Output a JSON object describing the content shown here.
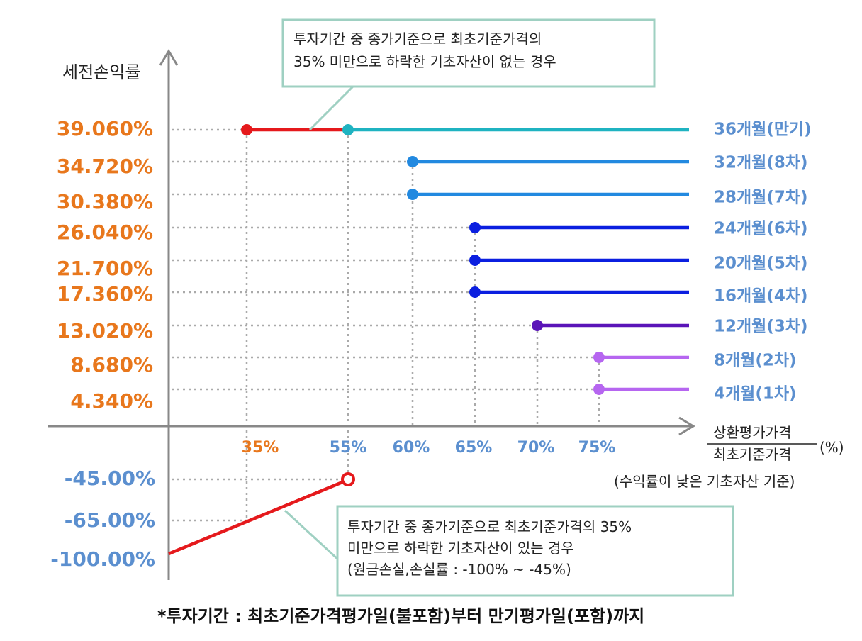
{
  "chart_data": {
    "type": "line",
    "ylabel": "세전손익률",
    "xlabel_numerator": "상환평가가격",
    "xlabel_denominator": "최초기준가격",
    "xlabel_unit": "(%)",
    "xlabel_note": "(수익률이 낮은 기초자산 기준)",
    "x_ticks": [
      {
        "label": "35%",
        "color": "#e8771c"
      },
      {
        "label": "55%",
        "color": "#5b8fcf"
      },
      {
        "label": "60%",
        "color": "#5b8fcf"
      },
      {
        "label": "65%",
        "color": "#5b8fcf"
      },
      {
        "label": "70%",
        "color": "#5b8fcf"
      },
      {
        "label": "75%",
        "color": "#5b8fcf"
      }
    ],
    "y_ticks_positive": [
      "39.060%",
      "34.720%",
      "30.380%",
      "26.040%",
      "21.700%",
      "17.360%",
      "13.020%",
      "8.680%",
      "4.340%"
    ],
    "y_ticks_negative": [
      "-45.00%",
      "-65.00%",
      "-100.00%"
    ],
    "positive_label_color": "#e8771c",
    "negative_label_color": "#5b8fcf",
    "series": [
      {
        "name": "36개월(만기)",
        "return": 39.06,
        "barrier": 55,
        "color": "#1fb3c1",
        "label_color": "#5b8fcf"
      },
      {
        "name": "32개월(8차)",
        "return": 34.72,
        "barrier": 60,
        "color": "#2289e0",
        "label_color": "#5b8fcf"
      },
      {
        "name": "28개월(7차)",
        "return": 30.38,
        "barrier": 60,
        "color": "#2289e0",
        "label_color": "#5b8fcf"
      },
      {
        "name": "24개월(6차)",
        "return": 26.04,
        "barrier": 65,
        "color": "#0b1fe0",
        "label_color": "#5b8fcf"
      },
      {
        "name": "20개월(5차)",
        "return": 21.7,
        "barrier": 65,
        "color": "#0b1fe0",
        "label_color": "#5b8fcf"
      },
      {
        "name": "16개월(4차)",
        "return": 17.36,
        "barrier": 65,
        "color": "#0b1fe0",
        "label_color": "#5b8fcf"
      },
      {
        "name": "12개월(3차)",
        "return": 13.02,
        "barrier": 70,
        "color": "#5a14b8",
        "label_color": "#5b8fcf"
      },
      {
        "name": "8개월(2차)",
        "return": 8.68,
        "barrier": 75,
        "color": "#b666f0",
        "label_color": "#5b8fcf"
      },
      {
        "name": "4개월(1차)",
        "return": 4.34,
        "barrier": 75,
        "color": "#b666f0",
        "label_color": "#5b8fcf"
      }
    ],
    "no_knock_in_segment": {
      "from": 35,
      "to": 55,
      "return": 39.06,
      "color": "#e5191c"
    },
    "loss_segment": {
      "points": [
        [
          0,
          -100
        ],
        [
          55,
          -45
        ]
      ],
      "color": "#e5191c"
    },
    "callout_top": [
      "투자기간 중 종가기준으로 최초기준가격의",
      "35% 미만으로 하락한 기초자산이 없는 경우"
    ],
    "callout_bottom": [
      "투자기간 중 종가기준으로 최초기준가격의 35%",
      "미만으로 하락한 기초자산이 있는 경우",
      "(원금손실,손실률 : -100% ~ -45%)"
    ],
    "callout_border_color": "#9fd0c2",
    "footnote": "*투자기간 : 최초기준가격평가일(불포함)부터 만기평가일(포함)까지"
  }
}
